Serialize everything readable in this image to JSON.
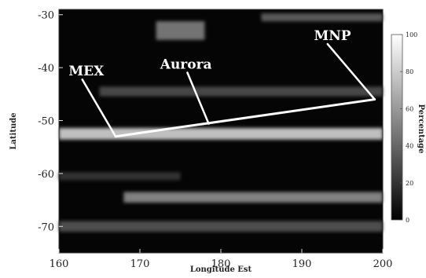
{
  "chart_data": {
    "type": "heatmap",
    "xlabel": "Longitude Est",
    "ylabel": "Latitude",
    "xlim": [
      160,
      200
    ],
    "ylim": [
      -75,
      -29
    ],
    "x_ticks": [
      "160",
      "170",
      "180",
      "190",
      "200"
    ],
    "y_ticks": [
      "-30",
      "-40",
      "-50",
      "-60",
      "-70"
    ],
    "colorbar": {
      "label": "Percentage",
      "range": [
        0,
        100
      ],
      "ticks": [
        "100",
        "80",
        "60",
        "40",
        "20",
        "0"
      ],
      "colormap": "gray"
    },
    "bands": [
      {
        "lat": -52.5,
        "width": 2.2,
        "lon_start": 160,
        "lon_end": 200,
        "intensity": 0.75
      },
      {
        "lat": -44.5,
        "width": 1.8,
        "lon_start": 165,
        "lon_end": 200,
        "intensity": 0.28
      },
      {
        "lat": -64.5,
        "width": 2.0,
        "lon_start": 168,
        "lon_end": 200,
        "intensity": 0.5
      },
      {
        "lat": -70.0,
        "width": 2.0,
        "lon_start": 160,
        "lon_end": 200,
        "intensity": 0.3
      },
      {
        "lat": -33.0,
        "width": 3.5,
        "lon_start": 172,
        "lon_end": 178,
        "intensity": 0.45
      },
      {
        "lat": -30.5,
        "width": 1.5,
        "lon_start": 185,
        "lon_end": 200,
        "intensity": 0.35
      },
      {
        "lat": -60.5,
        "width": 1.5,
        "lon_start": 160,
        "lon_end": 175,
        "intensity": 0.2
      }
    ],
    "track": [
      {
        "lon": 167,
        "lat": -53
      },
      {
        "lon": 199,
        "lat": -46
      }
    ],
    "annotations": [
      {
        "text": "MEX",
        "text_lon": 161.2,
        "text_lat": -41.5,
        "point_lon": 167,
        "point_lat": -53
      },
      {
        "text": "Aurora",
        "text_lon": 172.5,
        "text_lat": -40.2,
        "point_lon": 178.5,
        "point_lat": -50.6
      },
      {
        "text": "MNP",
        "text_lon": 191.5,
        "text_lat": -34.8,
        "point_lon": 199,
        "point_lat": -46
      }
    ]
  }
}
